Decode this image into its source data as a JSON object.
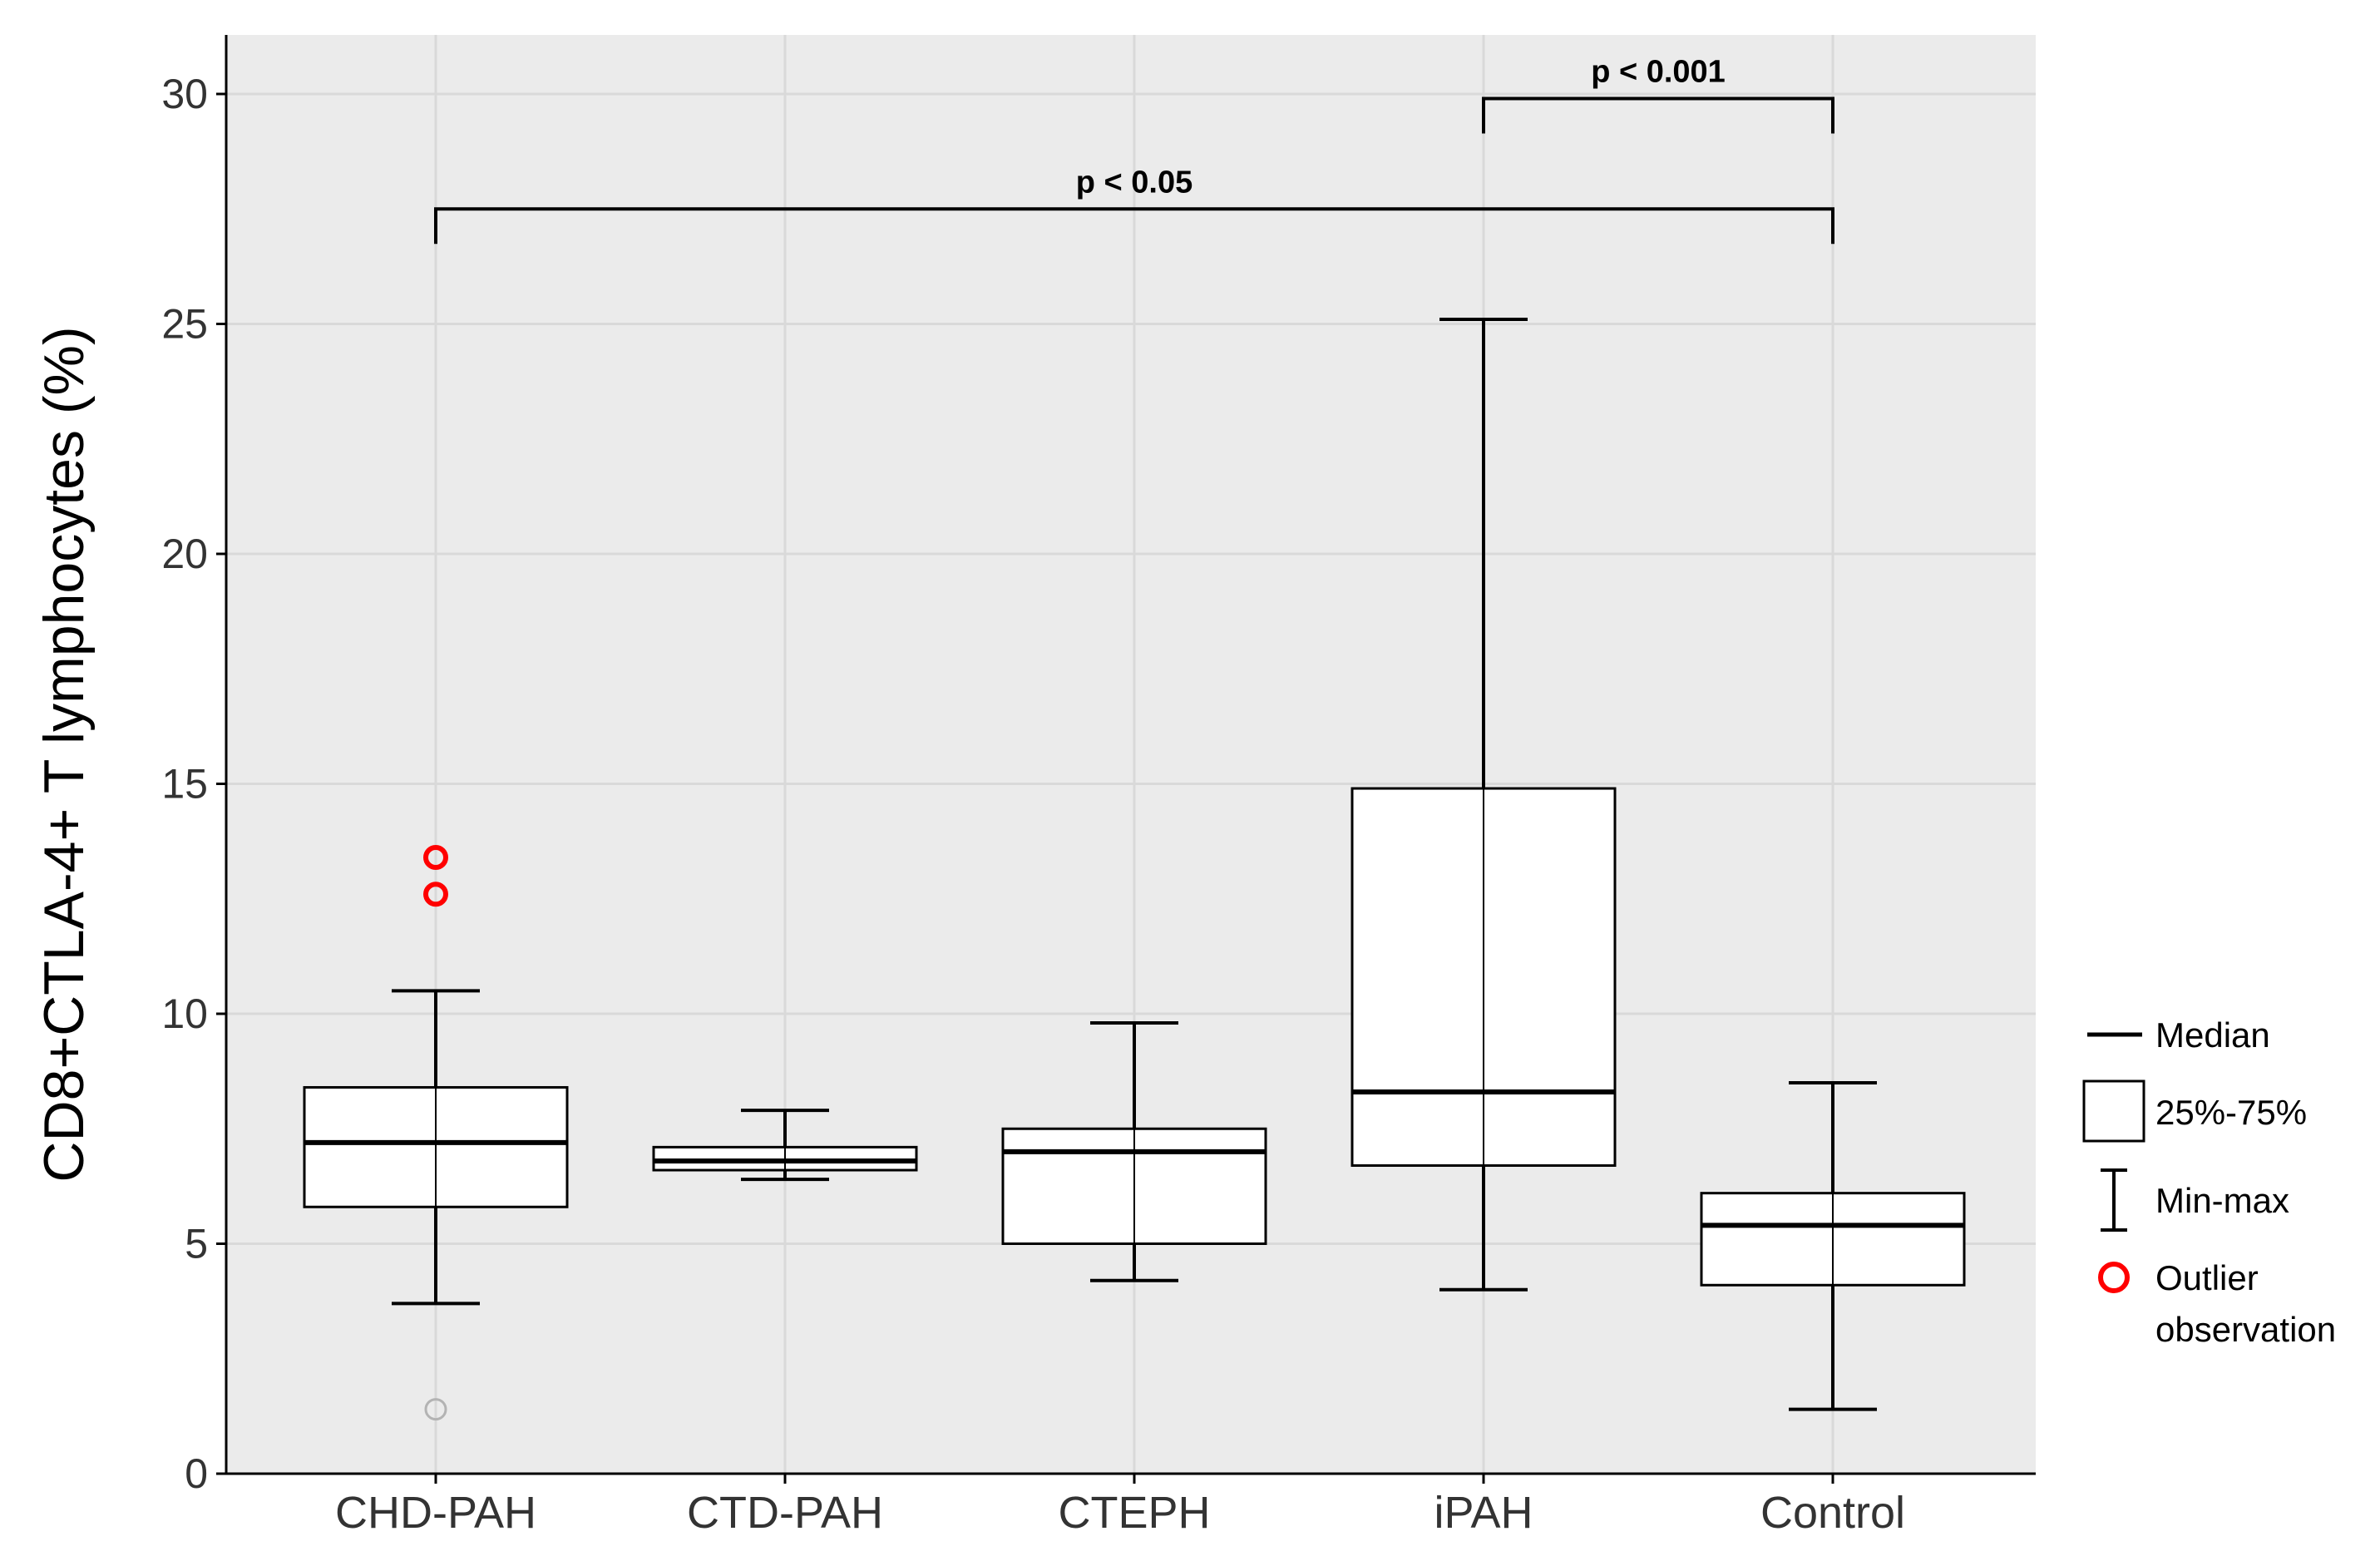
{
  "chart_data": {
    "type": "box",
    "ylabel": "CD8+CTLA-4+ T lymphocytes (%)",
    "xlabel": "",
    "ylim": [
      0,
      31
    ],
    "yticks": [
      0,
      5,
      10,
      15,
      20,
      25,
      30
    ],
    "grid": true,
    "categories": [
      "CHD-PAH",
      "CTD-PAH",
      "CTEPH",
      "iPAH",
      "Control"
    ],
    "boxes": [
      {
        "category": "CHD-PAH",
        "min": 3.7,
        "q1": 5.8,
        "median": 7.2,
        "q3": 8.4,
        "max": 10.5,
        "outliers": [
          13.4,
          12.6
        ],
        "gray_points": [
          1.4
        ]
      },
      {
        "category": "CTD-PAH",
        "min": 6.4,
        "q1": 6.6,
        "median": 6.8,
        "q3": 7.1,
        "max": 7.9,
        "outliers": [],
        "gray_points": []
      },
      {
        "category": "CTEPH",
        "min": 4.2,
        "q1": 5.0,
        "median": 7.0,
        "q3": 7.5,
        "max": 9.8,
        "outliers": [],
        "gray_points": []
      },
      {
        "category": "iPAH",
        "min": 4.0,
        "q1": 6.7,
        "median": 8.3,
        "q3": 14.9,
        "max": 25.1,
        "outliers": [],
        "gray_points": []
      },
      {
        "category": "Control",
        "min": 1.4,
        "q1": 4.1,
        "median": 5.4,
        "q3": 6.1,
        "max": 8.5,
        "outliers": [],
        "gray_points": []
      }
    ],
    "significance": [
      {
        "from": "CHD-PAH",
        "to": "Control",
        "label": "p < 0.05",
        "y": 27.5
      },
      {
        "from": "iPAH",
        "to": "Control",
        "label": "p < 0.001",
        "y": 29.9
      }
    ],
    "legend": {
      "placement": "right",
      "items": [
        {
          "symbol": "median-line",
          "label": "Median"
        },
        {
          "symbol": "box",
          "label": "25%-75%"
        },
        {
          "symbol": "whisker",
          "label": "Min-max"
        },
        {
          "symbol": "outlier-circle",
          "label": "Outlier",
          "label2": "observation"
        }
      ]
    },
    "colors": {
      "panel": "#ebebeb",
      "grid": "#d9d9d9",
      "box_fill": "#ffffff",
      "stroke": "#000000",
      "outlier": "#ff0000",
      "gray_point": "#b3b3b3"
    }
  }
}
